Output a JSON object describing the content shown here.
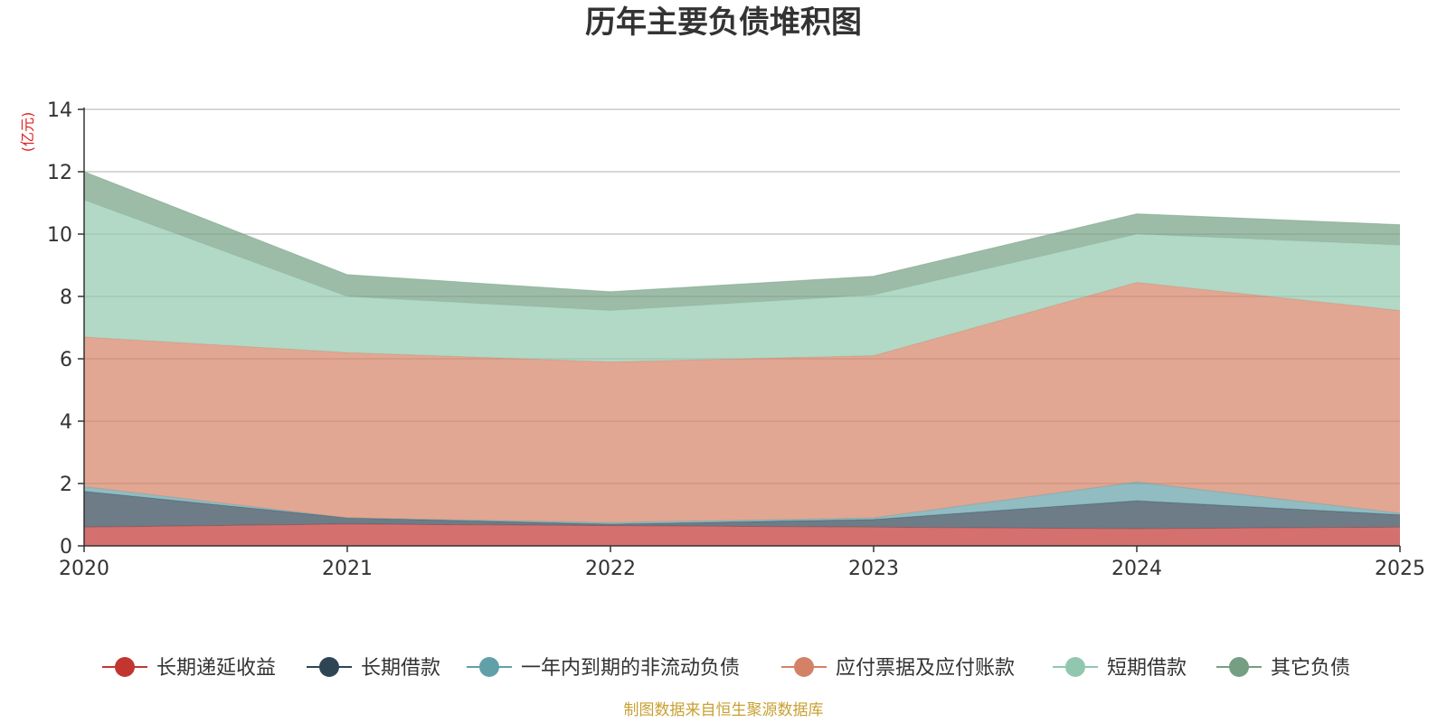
{
  "chart_data": {
    "type": "area",
    "stacked": true,
    "title": "历年主要负债堆积图",
    "unit_label": "(亿元)",
    "x": [
      "2020",
      "2021",
      "2022",
      "2023",
      "2024",
      "2025"
    ],
    "ylim": [
      0,
      14
    ],
    "yticks": [
      0,
      2,
      4,
      6,
      8,
      10,
      12,
      14
    ],
    "grid": true,
    "series": [
      {
        "name": "长期递延收益",
        "values": [
          0.6,
          0.7,
          0.65,
          0.6,
          0.55,
          0.6
        ],
        "color": "#c23531"
      },
      {
        "name": "长期借款",
        "values": [
          1.15,
          0.2,
          0.05,
          0.25,
          0.9,
          0.4
        ],
        "color": "#2f4554"
      },
      {
        "name": "一年内到期的非流动负债",
        "values": [
          0.15,
          0.0,
          0.05,
          0.05,
          0.6,
          0.05
        ],
        "color": "#61a0a8"
      },
      {
        "name": "应付票据及应付账款",
        "values": [
          4.8,
          5.3,
          5.15,
          5.2,
          6.4,
          6.5
        ],
        "color": "#d48265"
      },
      {
        "name": "短期借款",
        "values": [
          4.4,
          1.8,
          1.65,
          1.95,
          1.55,
          2.1
        ],
        "color": "#91c7ae"
      },
      {
        "name": "其它负债",
        "values": [
          0.9,
          0.7,
          0.6,
          0.6,
          0.65,
          0.65
        ],
        "color": "#749f83"
      }
    ],
    "legend_position": "bottom-center"
  },
  "source_note": "制图数据来自恒生聚源数据库",
  "colors": {
    "unit_label": "#e02020",
    "source_note": "#c8a032",
    "grid": "#bfbfbf",
    "axis": "#333333"
  }
}
